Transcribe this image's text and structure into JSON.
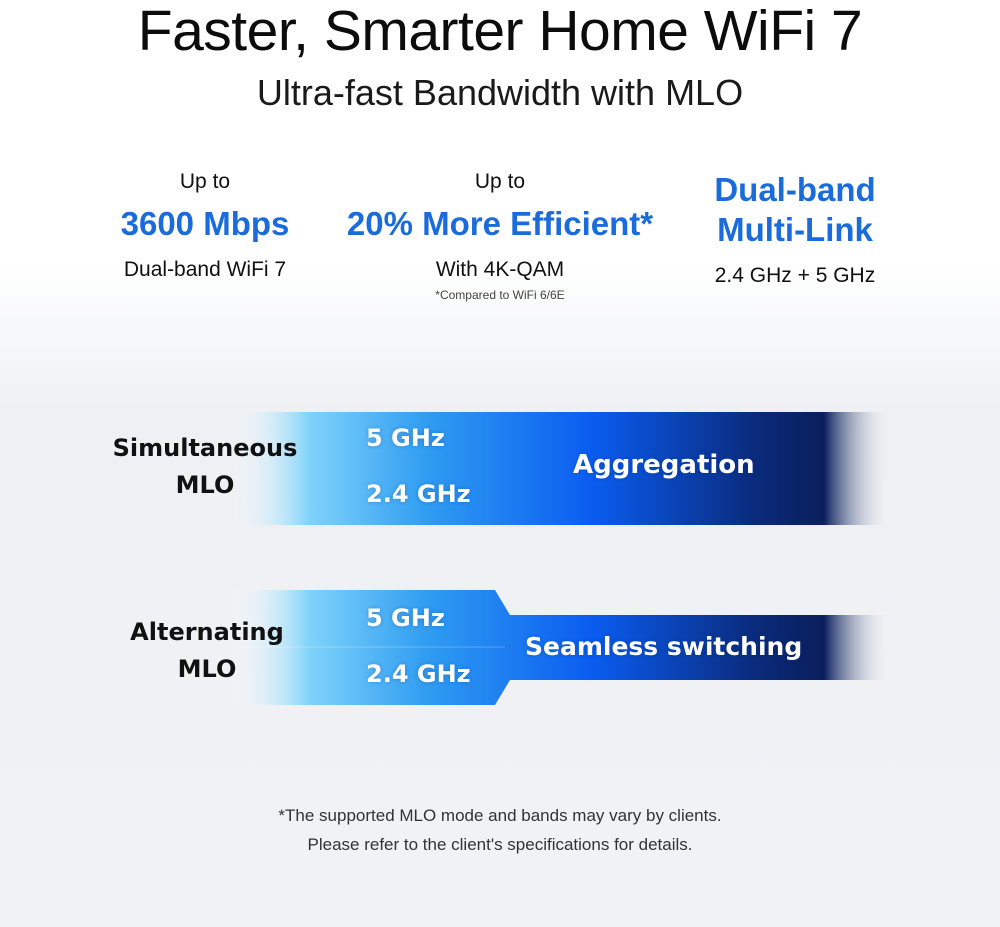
{
  "header": {
    "title": "Faster, Smarter Home WiFi 7",
    "subtitle": "Ultra-fast Bandwidth with MLO"
  },
  "stats": [
    {
      "top": "Up to",
      "highlight": "3600 Mbps",
      "bottom": "Dual-band WiFi 7"
    },
    {
      "top": "Up to",
      "highlight": "20% More Efficient*",
      "bottom": "With 4K-QAM",
      "note": "*Compared to WiFi 6/6E"
    },
    {
      "highlight_line1": "Dual-band",
      "highlight_line2": "Multi-Link",
      "bottom": "2.4 GHz + 5 GHz"
    }
  ],
  "modes": [
    {
      "label_line1": "Simultaneous",
      "label_line2": "MLO",
      "band_top": "5 GHz",
      "band_bottom": "2.4 GHz",
      "result": "Aggregation"
    },
    {
      "label_line1": "Alternating",
      "label_line2": "MLO",
      "band_top": "5 GHz",
      "band_bottom": "2.4 GHz",
      "result": "Seamless switching"
    }
  ],
  "footnote": {
    "line1": "*The supported MLO mode and bands may vary by clients.",
    "line2": "Please refer to the client's specifications for details."
  },
  "colors": {
    "accent": "#1a6bdc",
    "bar_light": "#5cc6f7",
    "bar_mid": "#0a5cf0",
    "bar_dark": "#0a1f5c"
  }
}
